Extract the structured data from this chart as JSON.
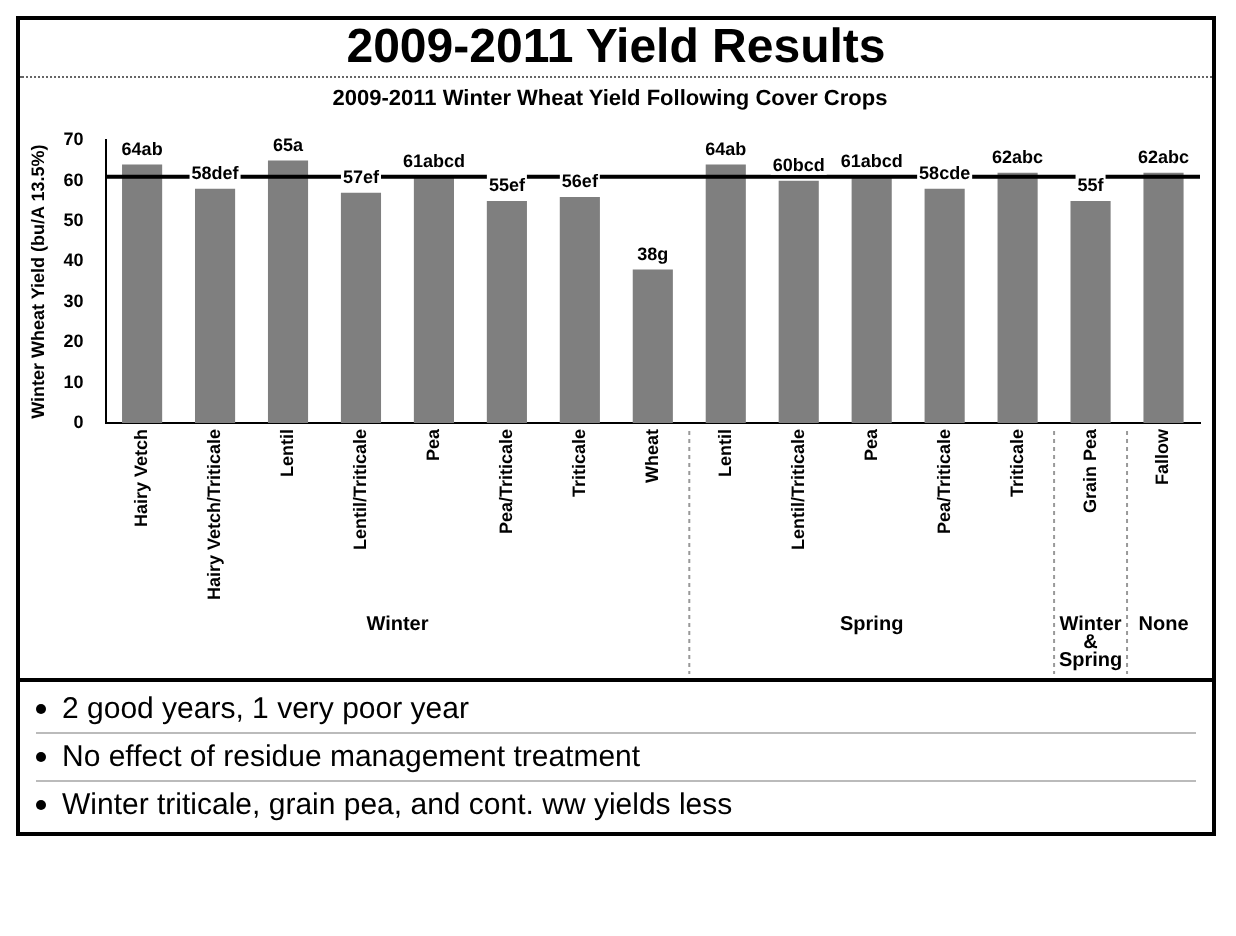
{
  "chart_data": {
    "type": "bar",
    "title": "2009-2011 Yield Results",
    "subtitle": "2009-2011 Winter Wheat Yield Following Cover Crops",
    "ylabel": "Winter Wheat Yield (bu/A 13.5%)",
    "categories": [
      "Hairy Vetch",
      "Hairy Vetch/Triticale",
      "Lentil",
      "Lentil/Triticale",
      "Pea",
      "Pea/Triticale",
      "Triticale",
      "Wheat",
      "Lentil",
      "Lentil/Triticale",
      "Pea",
      "Pea/Triticale",
      "Triticale",
      "Grain Pea",
      "Fallow"
    ],
    "values": [
      64,
      58,
      65,
      57,
      61,
      55,
      56,
      38,
      64,
      60,
      61,
      58,
      62,
      55,
      62
    ],
    "value_labels": [
      "64ab",
      "58def",
      "65a",
      "57ef",
      "61abcd",
      "55ef",
      "56ef",
      "38g",
      "64ab",
      "60bcd",
      "61abcd",
      "58cde",
      "62abc",
      "55f",
      "62abc"
    ],
    "color": "#7f7f7f",
    "ylim": [
      0,
      70
    ],
    "yticks": [
      0,
      10,
      20,
      30,
      40,
      50,
      60,
      70
    ],
    "grid": false,
    "legend": false,
    "ref_lines": [
      {
        "axis": "y",
        "value": 61,
        "color": "#000000"
      }
    ],
    "annotations": [
      "Winter",
      "Spring",
      "Winter & Spring",
      "None",
      "2 good years, 1 very poor year",
      "No effect of residue management treatment",
      "Winter triticale, grain pea, and cont. ww yields less"
    ]
  }
}
